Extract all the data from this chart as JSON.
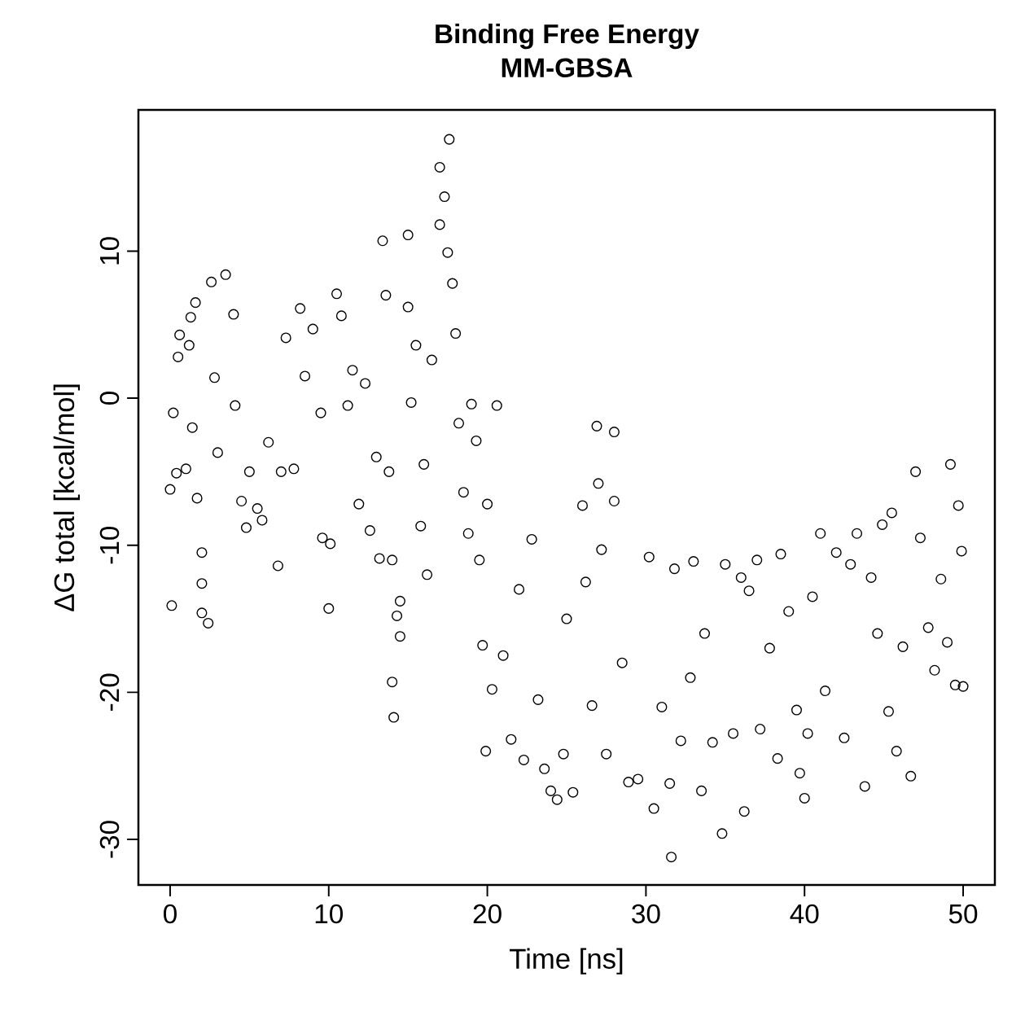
{
  "chart_data": {
    "type": "scatter",
    "title": "Binding Free Energy",
    "subtitle": "MM-GBSA",
    "xlabel": "Time [ns]",
    "ylabel": "ΔG total [kcal/mol]",
    "color": "#000000",
    "marker": "circle",
    "xlim": [
      -2,
      52
    ],
    "ylim": [
      -33.1,
      19.6
    ],
    "xticks": [
      0,
      10,
      20,
      30,
      40,
      50
    ],
    "yticks": [
      -30,
      -20,
      -10,
      0,
      10
    ],
    "x": [
      0.0,
      0.1,
      0.2,
      0.5,
      0.6,
      0.4,
      1.0,
      1.2,
      1.3,
      1.6,
      1.4,
      1.7,
      2.0,
      2.0,
      2.0,
      2.4,
      2.6,
      3.5,
      2.8,
      3.0,
      4.0,
      4.1,
      4.5,
      4.8,
      5.0,
      5.5,
      5.8,
      6.2,
      6.8,
      7.0,
      7.3,
      7.8,
      8.2,
      8.5,
      9.0,
      9.5,
      9.6,
      10.0,
      10.1,
      10.5,
      10.8,
      11.2,
      11.5,
      11.9,
      12.3,
      12.6,
      13.0,
      13.2,
      13.4,
      13.6,
      13.8,
      14.0,
      14.0,
      14.1,
      14.3,
      14.5,
      14.5,
      15.0,
      15.0,
      15.2,
      15.5,
      15.8,
      16.0,
      16.2,
      16.5,
      17.0,
      17.0,
      17.3,
      17.6,
      17.5,
      17.8,
      18.0,
      18.2,
      18.5,
      18.8,
      19.0,
      19.3,
      19.5,
      19.7,
      19.9,
      20.0,
      20.3,
      20.6,
      21.0,
      21.5,
      22.0,
      22.3,
      22.8,
      23.2,
      23.6,
      24.0,
      24.4,
      24.8,
      25.0,
      25.4,
      26.0,
      26.2,
      26.6,
      26.9,
      27.0,
      27.2,
      27.5,
      28.0,
      28.0,
      28.5,
      28.9,
      29.5,
      30.2,
      30.5,
      31.0,
      31.5,
      31.6,
      31.8,
      32.2,
      32.8,
      33.0,
      33.5,
      33.7,
      34.2,
      34.8,
      35.0,
      35.5,
      36.0,
      36.2,
      36.5,
      37.0,
      37.2,
      37.8,
      38.3,
      38.5,
      39.0,
      39.5,
      39.7,
      40.0,
      40.2,
      40.5,
      41.0,
      41.3,
      42.0,
      42.5,
      42.9,
      43.3,
      43.8,
      44.2,
      44.6,
      44.9,
      45.3,
      45.5,
      45.8,
      46.2,
      46.7,
      47.0,
      47.3,
      47.8,
      48.2,
      48.6,
      49.0,
      49.2,
      49.5,
      49.7,
      49.9,
      50.0
    ],
    "values": [
      -6.2,
      -14.1,
      -1.0,
      2.8,
      4.3,
      -5.1,
      -4.8,
      3.6,
      5.5,
      6.5,
      -2.0,
      -6.8,
      -10.5,
      -12.6,
      -14.6,
      -15.3,
      7.9,
      8.4,
      1.4,
      -3.7,
      5.7,
      -0.5,
      -7.0,
      -8.8,
      -5.0,
      -7.5,
      -8.3,
      -3.0,
      -11.4,
      -5.0,
      4.1,
      -4.8,
      6.1,
      1.5,
      4.7,
      -1.0,
      -9.5,
      -14.3,
      -9.9,
      7.1,
      5.6,
      -0.5,
      1.9,
      -7.2,
      1.0,
      -9.0,
      -4.0,
      -10.9,
      10.7,
      7.0,
      -5.0,
      -11.0,
      -19.3,
      -21.7,
      -14.8,
      -16.2,
      -13.8,
      11.1,
      6.2,
      -0.3,
      3.6,
      -8.7,
      -4.5,
      -12.0,
      2.6,
      11.8,
      15.7,
      13.7,
      17.6,
      9.9,
      7.8,
      4.4,
      -1.7,
      -6.4,
      -9.2,
      -0.4,
      -2.9,
      -11.0,
      -16.8,
      -24.0,
      -7.2,
      -19.8,
      -0.5,
      -17.5,
      -23.2,
      -13.0,
      -24.6,
      -9.6,
      -20.5,
      -25.2,
      -26.7,
      -27.3,
      -24.2,
      -15.0,
      -26.8,
      -7.3,
      -12.5,
      -20.9,
      -1.9,
      -5.8,
      -10.3,
      -24.2,
      -2.3,
      -7.0,
      -18.0,
      -26.1,
      -25.9,
      -10.8,
      -27.9,
      -21.0,
      -26.2,
      -31.2,
      -11.6,
      -23.3,
      -19.0,
      -11.1,
      -26.7,
      -16.0,
      -23.4,
      -29.6,
      -11.3,
      -22.8,
      -12.2,
      -28.1,
      -13.1,
      -11.0,
      -22.5,
      -17.0,
      -24.5,
      -10.6,
      -14.5,
      -21.2,
      -25.5,
      -27.2,
      -22.8,
      -13.5,
      -9.2,
      -19.9,
      -10.5,
      -23.1,
      -11.3,
      -9.2,
      -26.4,
      -12.2,
      -16.0,
      -8.6,
      -21.3,
      -7.8,
      -24.0,
      -16.9,
      -25.7,
      -5.0,
      -9.5,
      -15.6,
      -18.5,
      -12.3,
      -16.6,
      -4.5,
      -19.5,
      -7.3,
      -10.4,
      -19.6
    ]
  }
}
